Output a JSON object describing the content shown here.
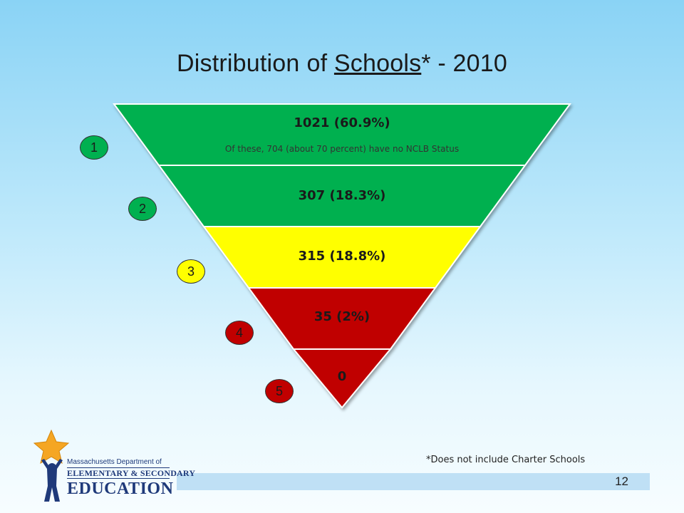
{
  "title": {
    "prefix": "Distribution",
    "of": "of",
    "underlined": "Schools",
    "suffix": "* - 2010"
  },
  "levels": [
    {
      "badge": "1",
      "label": "1021 (60.9%)",
      "color": "#00b050"
    },
    {
      "badge": "2",
      "label": "307 (18.3%)",
      "color": "#00b050"
    },
    {
      "badge": "3",
      "label": "315 (18.8%)",
      "color": "#ffff00"
    },
    {
      "badge": "4",
      "label": "35 (2%)",
      "color": "#c00000"
    },
    {
      "badge": "5",
      "label": "0",
      "color": "#c00000"
    }
  ],
  "level1_note": "Of these, 704 (about 70 percent) have no NCLB Status",
  "footnote": "*Does not include Charter Schools",
  "page_number": "12",
  "logo": {
    "line1": "Massachusetts Department of",
    "line2": "ELEMENTARY & SECONDARY",
    "line3": "EDUCATION"
  }
}
